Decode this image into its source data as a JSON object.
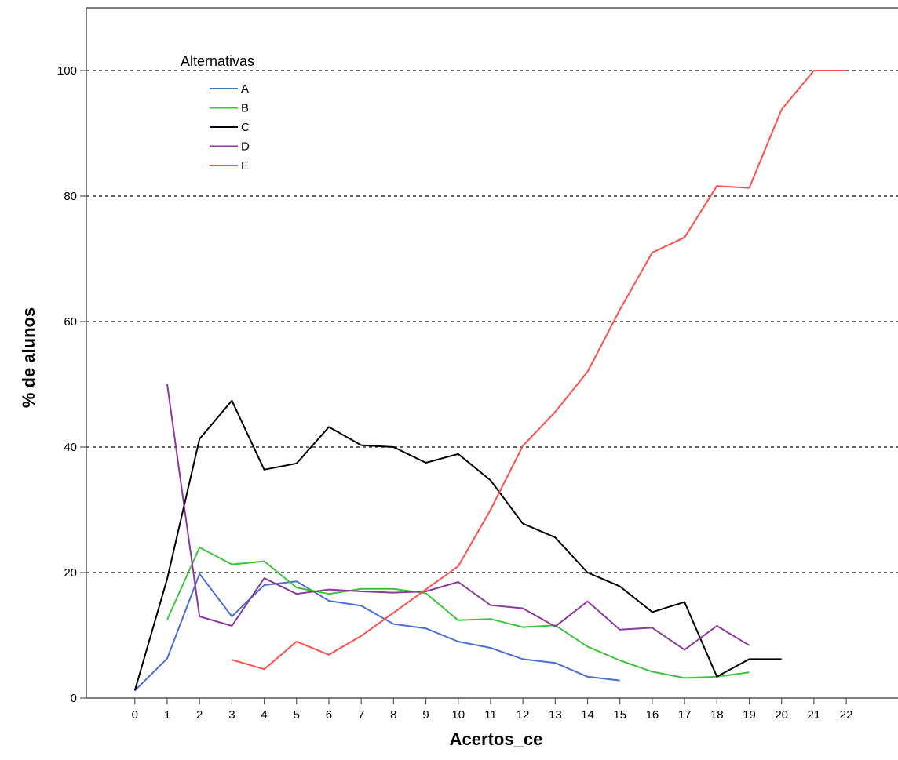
{
  "chart_data": {
    "type": "line",
    "title": "",
    "xlabel": "Acertos_ce",
    "ylabel": "% de alunos",
    "x_ticks": [
      "0",
      "1",
      "2",
      "3",
      "4",
      "5",
      "6",
      "7",
      "8",
      "9",
      "10",
      "11",
      "12",
      "13",
      "14",
      "15",
      "16",
      "17",
      "18",
      "19",
      "20",
      "21",
      "22"
    ],
    "y_ticks": [
      "0",
      "20",
      "40",
      "60",
      "80",
      "100"
    ],
    "ylim": [
      0,
      110
    ],
    "xlim": [
      -1.5,
      23.6
    ],
    "grid": "horizontal dashed at 20, 40, 60, 80, 100",
    "legend": {
      "title": "Alternativas",
      "placement": "top-left"
    },
    "series": [
      {
        "name": "A",
        "color": "#4a6fcf",
        "x": [
          0,
          1,
          2,
          3,
          4,
          5,
          6,
          7,
          8,
          9,
          10,
          11,
          12,
          13,
          14,
          15
        ],
        "y": [
          1.2,
          6.3,
          19.8,
          13.0,
          18.0,
          18.6,
          15.5,
          14.7,
          11.8,
          11.1,
          9.0,
          8.0,
          6.2,
          5.6,
          3.4,
          2.8
        ]
      },
      {
        "name": "B",
        "color": "#3cc43c",
        "x": [
          1,
          2,
          3,
          4,
          5,
          6,
          7,
          8,
          9,
          10,
          11,
          12,
          13,
          14,
          15,
          16,
          17,
          18,
          19
        ],
        "y": [
          12.5,
          24.0,
          21.3,
          21.8,
          17.6,
          16.6,
          17.4,
          17.4,
          16.7,
          12.4,
          12.6,
          11.3,
          11.6,
          8.2,
          6.0,
          4.2,
          3.2,
          3.4,
          4.1
        ]
      },
      {
        "name": "C",
        "color": "#000000",
        "x": [
          0,
          1,
          2,
          3,
          4,
          5,
          6,
          7,
          8,
          9,
          10,
          11,
          12,
          13,
          14,
          15,
          16,
          17,
          18,
          19,
          20
        ],
        "y": [
          1.2,
          19.0,
          41.3,
          47.4,
          36.4,
          37.4,
          43.2,
          40.3,
          40.0,
          37.5,
          38.9,
          34.7,
          27.8,
          25.6,
          20.0,
          17.8,
          13.7,
          15.3,
          3.4,
          6.2,
          6.2
        ]
      },
      {
        "name": "D",
        "color": "#8a3b9a",
        "x": [
          1,
          2,
          3,
          4,
          5,
          6,
          7,
          8,
          9,
          10,
          11,
          12,
          13,
          14,
          15,
          16,
          17,
          18,
          19
        ],
        "y": [
          50.0,
          13.0,
          11.5,
          19.1,
          16.6,
          17.3,
          17.0,
          16.8,
          17.0,
          18.5,
          14.8,
          14.3,
          11.4,
          15.4,
          10.9,
          11.2,
          7.7,
          11.5,
          8.4
        ]
      },
      {
        "name": "E",
        "color": "#ff4d4d",
        "x": [
          3,
          4,
          5,
          6,
          7,
          8,
          9,
          10,
          11,
          12,
          13,
          14,
          15,
          16,
          17,
          18,
          19,
          20,
          21,
          22
        ],
        "y": [
          6.1,
          4.6,
          9.0,
          6.9,
          9.9,
          13.6,
          17.3,
          21.0,
          30.0,
          40.2,
          45.6,
          52.0,
          61.9,
          71.0,
          73.4,
          81.6,
          81.3,
          93.8,
          100,
          100
        ]
      }
    ]
  }
}
